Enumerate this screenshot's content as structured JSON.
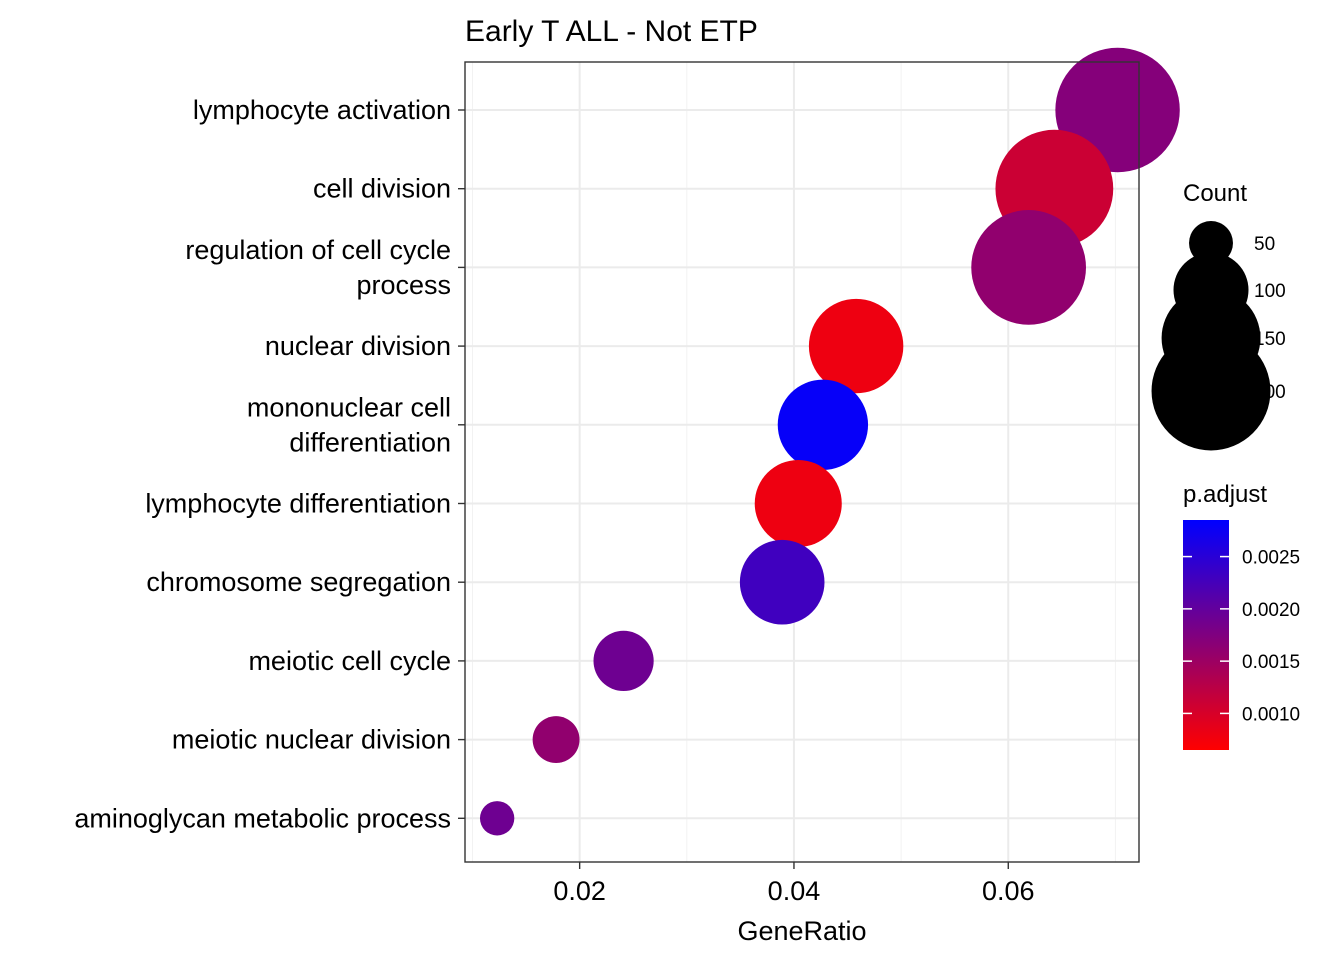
{
  "chart_data": {
    "type": "scatter",
    "title": "Early T ALL - Not ETP",
    "xlabel": "GeneRatio",
    "ylabel": "",
    "xlim": [
      0.0093,
      0.0722
    ],
    "xticks": [
      0.02,
      0.04,
      0.06
    ],
    "xtick_labels": [
      "0.02",
      "0.04",
      "0.06"
    ],
    "grid": true,
    "categories": [
      [
        "lymphocyte activation"
      ],
      [
        "cell division"
      ],
      [
        "regulation of cell cycle",
        "process"
      ],
      [
        "nuclear division"
      ],
      [
        "mononuclear cell",
        "differentiation"
      ],
      [
        "lymphocyte differentiation"
      ],
      [
        "chromosome segregation"
      ],
      [
        "meiotic cell cycle"
      ],
      [
        "meiotic nuclear division"
      ],
      [
        "aminoglycan metabolic process"
      ]
    ],
    "points": [
      {
        "gene_ratio": 0.0702,
        "count": 215,
        "p_adjust": 0.0017
      },
      {
        "gene_ratio": 0.0643,
        "count": 197,
        "p_adjust": 0.0011
      },
      {
        "gene_ratio": 0.0619,
        "count": 189,
        "p_adjust": 0.0016
      },
      {
        "gene_ratio": 0.0458,
        "count": 140,
        "p_adjust": 0.0008
      },
      {
        "gene_ratio": 0.0427,
        "count": 131,
        "p_adjust": 0.0028
      },
      {
        "gene_ratio": 0.0404,
        "count": 124,
        "p_adjust": 0.0008
      },
      {
        "gene_ratio": 0.0389,
        "count": 119,
        "p_adjust": 0.0023
      },
      {
        "gene_ratio": 0.0241,
        "count": 74,
        "p_adjust": 0.0019
      },
      {
        "gene_ratio": 0.0178,
        "count": 54,
        "p_adjust": 0.0016
      },
      {
        "gene_ratio": 0.0123,
        "count": 38,
        "p_adjust": 0.0019
      }
    ],
    "size_legend": {
      "title": "Count",
      "values": [
        50,
        100,
        150,
        200
      ],
      "labels": [
        "50",
        "100",
        "150",
        "200"
      ],
      "placement": "right"
    },
    "color_legend": {
      "title": "p.adjust",
      "range": [
        0.00065,
        0.00285
      ],
      "ticks": [
        0.001,
        0.0015,
        0.002,
        0.0025
      ],
      "labels": [
        "0.0010",
        "0.0015",
        "0.0020",
        "0.0025"
      ],
      "low_color": "#ff0000",
      "high_color": "#0000ff",
      "placement": "right"
    }
  }
}
